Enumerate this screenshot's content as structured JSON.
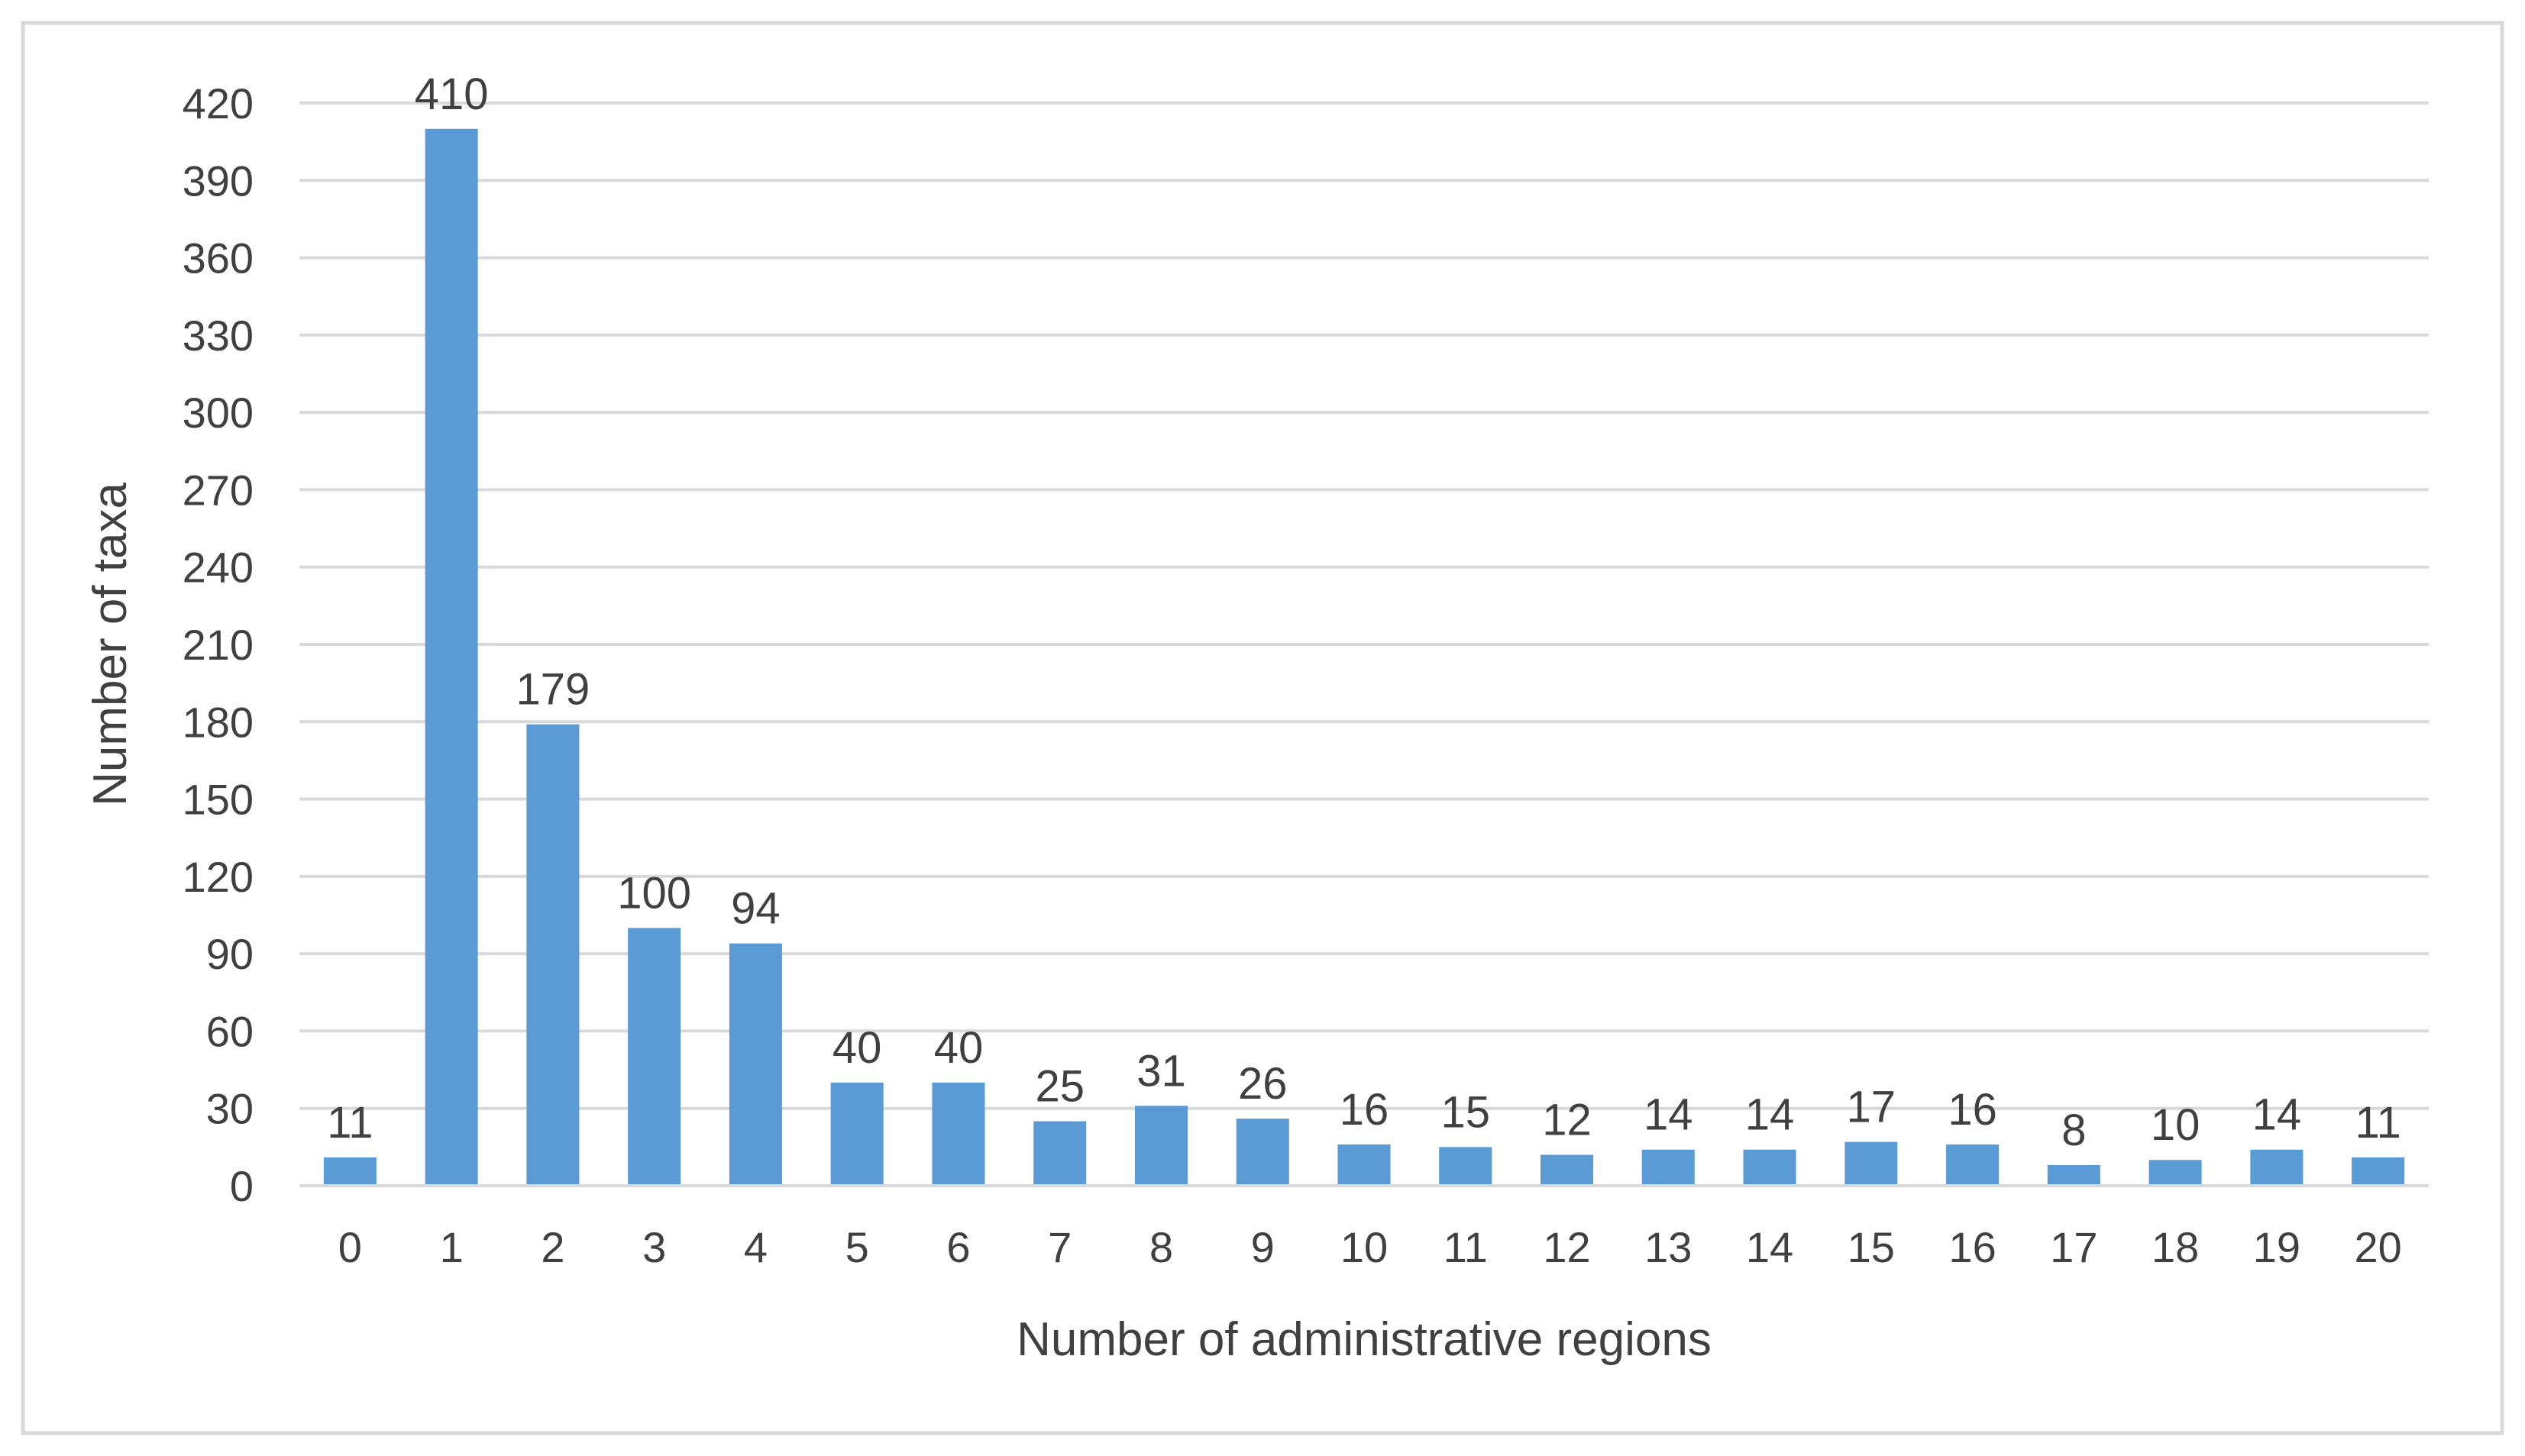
{
  "chart_data": {
    "type": "bar",
    "title": "",
    "xlabel": "Number of administrative regions",
    "ylabel": "Number of taxa",
    "categories": [
      "0",
      "1",
      "2",
      "3",
      "4",
      "5",
      "6",
      "7",
      "8",
      "9",
      "10",
      "11",
      "12",
      "13",
      "14",
      "15",
      "16",
      "17",
      "18",
      "19",
      "20"
    ],
    "values": [
      11,
      410,
      179,
      100,
      94,
      40,
      40,
      25,
      31,
      26,
      16,
      15,
      12,
      14,
      14,
      17,
      16,
      8,
      10,
      14,
      11
    ],
    "ylim": [
      0,
      420
    ],
    "yticks": [
      "0",
      "30",
      "60",
      "90",
      "120",
      "150",
      "180",
      "210",
      "240",
      "270",
      "300",
      "330",
      "360",
      "390",
      "420"
    ],
    "grid": true,
    "legend": "none",
    "colors": {
      "bar": "#5b9bd5",
      "grid": "#d9d9d9",
      "text": "#404040",
      "border": "#d9d9d9"
    }
  }
}
